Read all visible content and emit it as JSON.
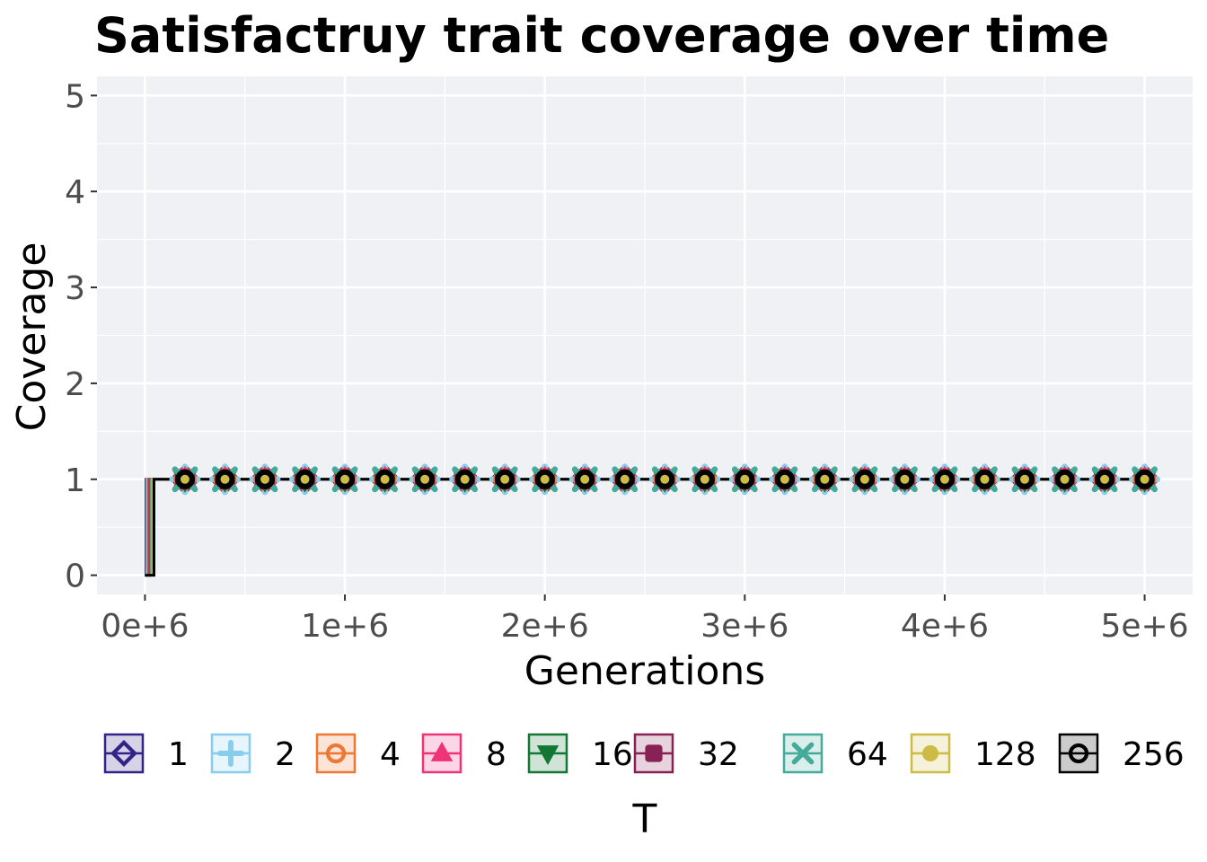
{
  "chart_data": {
    "type": "line",
    "title": "Satisfactruy trait coverage over time",
    "xlabel": "Generations",
    "ylabel": "Coverage",
    "xlim": [
      -240000,
      5240000
    ],
    "ylim": [
      -0.2,
      5.2
    ],
    "x_ticks": [
      0,
      1000000,
      2000000,
      3000000,
      4000000,
      5000000
    ],
    "x_tick_labels": [
      "0e+6",
      "1e+6",
      "2e+6",
      "3e+6",
      "4e+6",
      "5e+6"
    ],
    "y_ticks": [
      0,
      1,
      2,
      3,
      4,
      5
    ],
    "y_tick_labels": [
      "0",
      "1",
      "2",
      "3",
      "4",
      "5"
    ],
    "grid": true,
    "legend": {
      "title": "T",
      "position": "bottom"
    },
    "marker_x": [
      200000,
      400000,
      600000,
      800000,
      1000000,
      1200000,
      1400000,
      1600000,
      1800000,
      2000000,
      2200000,
      2400000,
      2600000,
      2800000,
      3000000,
      3200000,
      3400000,
      3600000,
      3800000,
      4000000,
      4200000,
      4400000,
      4600000,
      4800000,
      5000000
    ],
    "series": [
      {
        "name": "1",
        "color": "#332288",
        "marker": "diamond",
        "rise_x": 5000,
        "value": 1
      },
      {
        "name": "2",
        "color": "#88ccee",
        "marker": "plus",
        "rise_x": 10000,
        "value": 1
      },
      {
        "name": "4",
        "color": "#ee7733",
        "marker": "circle-open",
        "rise_x": 15000,
        "value": 1
      },
      {
        "name": "8",
        "color": "#ee3377",
        "marker": "triangle-up",
        "rise_x": 20000,
        "value": 1
      },
      {
        "name": "16",
        "color": "#117733",
        "marker": "triangle-down",
        "rise_x": 25000,
        "value": 1
      },
      {
        "name": "32",
        "color": "#882255",
        "marker": "square",
        "rise_x": 28000,
        "value": 1
      },
      {
        "name": "64",
        "color": "#44aa99",
        "marker": "x",
        "rise_x": 30000,
        "value": 1
      },
      {
        "name": "128",
        "color": "#ccbb44",
        "marker": "circle",
        "rise_x": 38000,
        "value": 1
      },
      {
        "name": "256",
        "color": "#000000",
        "marker": "circle-open",
        "rise_x": 45000,
        "value": 1
      }
    ]
  }
}
